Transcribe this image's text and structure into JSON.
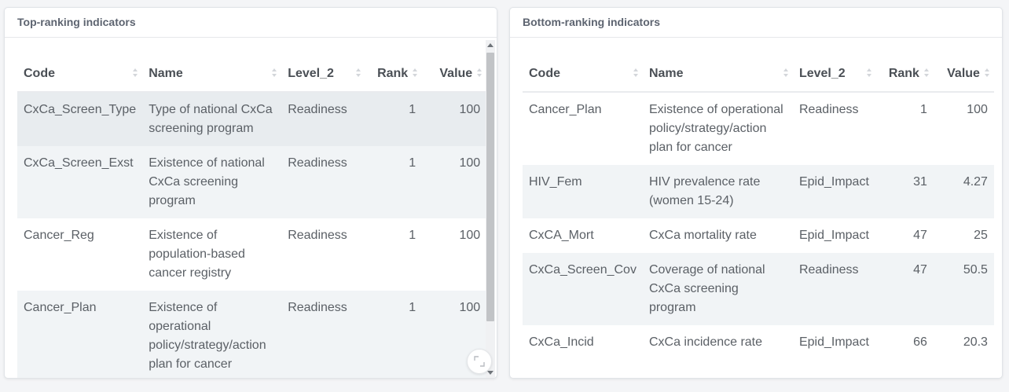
{
  "top_card": {
    "title": "Top-ranking indicators",
    "columns": [
      "Code",
      "Name",
      "Level_2",
      "Rank",
      "Value"
    ],
    "rows": [
      {
        "code": "CxCa_Screen_Type",
        "name": "Type of national CxCa screening program",
        "level_2": "Readiness",
        "rank": "1",
        "value": "100"
      },
      {
        "code": "CxCa_Screen_Exst",
        "name": "Existence of national CxCa screening program",
        "level_2": "Readiness",
        "rank": "1",
        "value": "100"
      },
      {
        "code": "Cancer_Reg",
        "name": "Existence of population-based cancer registry",
        "level_2": "Readiness",
        "rank": "1",
        "value": "100"
      },
      {
        "code": "Cancer_Plan",
        "name": "Existence of operational policy/strategy/action plan for cancer",
        "level_2": "Readiness",
        "rank": "1",
        "value": "100"
      }
    ]
  },
  "bottom_card": {
    "title": "Bottom-ranking indicators",
    "columns": [
      "Code",
      "Name",
      "Level_2",
      "Rank",
      "Value"
    ],
    "rows": [
      {
        "code": "Cancer_Plan",
        "name": "Existence of operational policy/strategy/action plan for cancer",
        "level_2": "Readiness",
        "rank": "1",
        "value": "100"
      },
      {
        "code": "HIV_Fem",
        "name": "HIV prevalence rate (women 15-24)",
        "level_2": "Epid_Impact",
        "rank": "31",
        "value": "4.27"
      },
      {
        "code": "CxCA_Mort",
        "name": "CxCa mortality rate",
        "level_2": "Epid_Impact",
        "rank": "47",
        "value": "25"
      },
      {
        "code": "CxCa_Screen_Cov",
        "name": "Coverage of national CxCa screening program",
        "level_2": "Readiness",
        "rank": "47",
        "value": "50.5"
      },
      {
        "code": "CxCa_Incid",
        "name": "CxCa incidence rate",
        "level_2": "Epid_Impact",
        "rank": "66",
        "value": "20.3"
      }
    ]
  },
  "icons": {
    "sort": "sort-icon",
    "expand": "expand-icon",
    "scroll_up": "scroll-up-arrow-icon",
    "scroll_down": "scroll-down-arrow-icon"
  },
  "colors": {
    "selected_row": "#e8ecef",
    "striped_row": "#f1f4f6",
    "header_text": "#5d6470"
  }
}
